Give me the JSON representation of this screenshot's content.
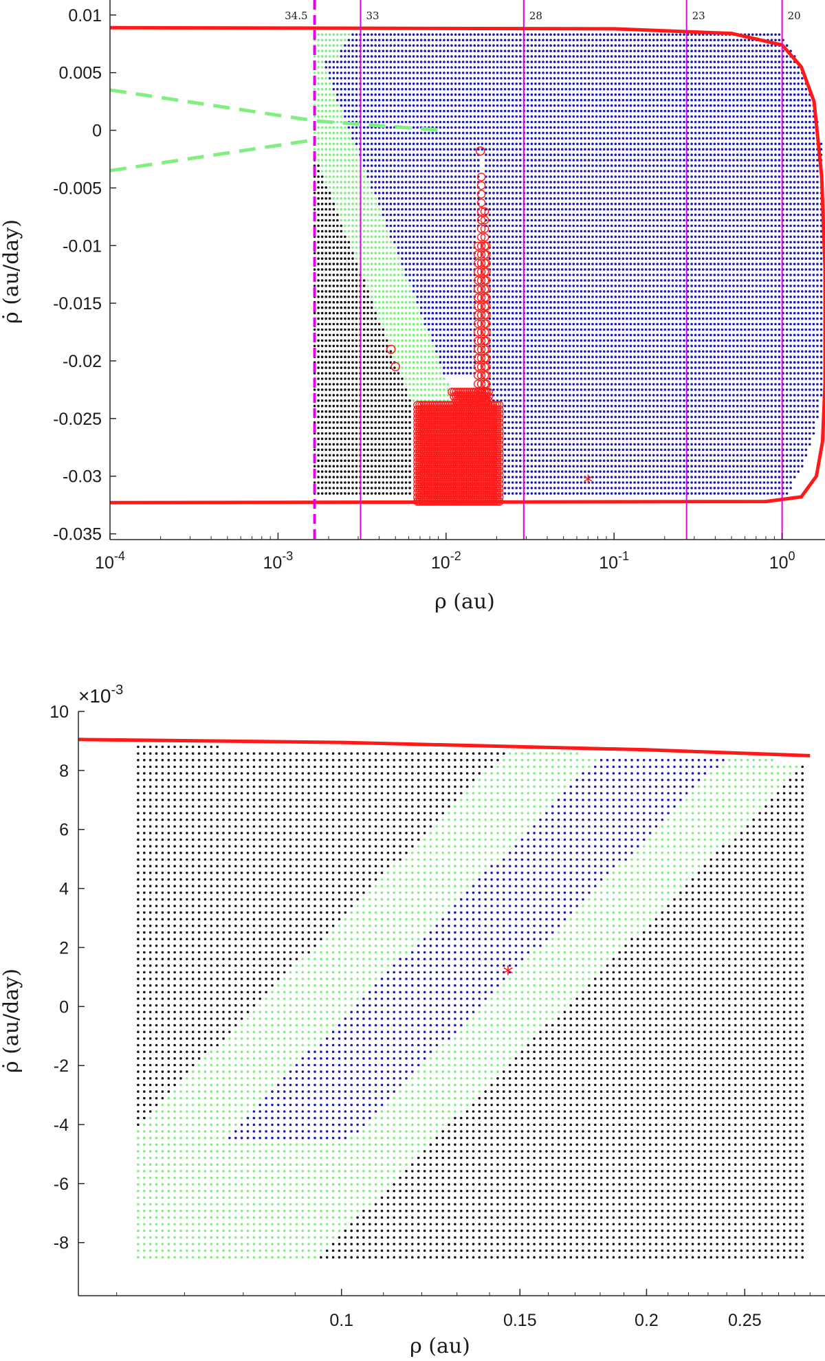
{
  "chart_data": [
    {
      "type": "scatter",
      "xscale": "log",
      "xlim": [
        0.0001,
        1.8
      ],
      "ylim": [
        -0.0355,
        0.0113
      ],
      "xticks": [
        0.0001,
        0.001,
        0.01,
        0.1,
        1
      ],
      "xtick_labels": [
        {
          "base": "10",
          "exp": "-4"
        },
        {
          "base": "10",
          "exp": "-3"
        },
        {
          "base": "10",
          "exp": "-2"
        },
        {
          "base": "10",
          "exp": "-1"
        },
        {
          "base": "10",
          "exp": "0"
        }
      ],
      "yticks": [
        0.01,
        0.005,
        0,
        -0.005,
        -0.01,
        -0.015,
        -0.02,
        -0.025,
        -0.03,
        -0.035
      ],
      "ytick_labels": [
        "0.01",
        "0.005",
        "0",
        "-0.005",
        "-0.01",
        "-0.015",
        "-0.02",
        "-0.025",
        "-0.03",
        "-0.035"
      ],
      "xlabel": "ρ (au)",
      "ylabel": "ρ̇ (au/day)",
      "dashed_vertical": {
        "x": 0.00165,
        "label": "34.5",
        "color": "#e400e4"
      },
      "vertical_lines": [
        {
          "x": 0.0031,
          "label": "33"
        },
        {
          "x": 0.029,
          "label": "28"
        },
        {
          "x": 0.27,
          "label": "23"
        },
        {
          "x": 1.0,
          "label": "20"
        }
      ],
      "boundary": {
        "color": "#ff1a1a",
        "upper": [
          [
            0.0001,
            0.0089
          ],
          [
            0.1,
            0.0088
          ],
          [
            0.5,
            0.0084
          ],
          [
            1.0,
            0.0074
          ],
          [
            1.3,
            0.0055
          ],
          [
            1.55,
            0.0025
          ],
          [
            1.72,
            -0.004
          ],
          [
            1.8,
            -0.012
          ],
          [
            1.8,
            -0.022
          ],
          [
            1.74,
            -0.027
          ],
          [
            1.6,
            -0.03
          ],
          [
            1.3,
            -0.0318
          ],
          [
            0.8,
            -0.0322
          ],
          [
            0.0001,
            -0.0323
          ]
        ]
      },
      "series": [
        {
          "name": "",
          "color": "#1a1ab3",
          "region": "outer grid region"
        },
        {
          "name": "",
          "color": "#7ff07f",
          "region": "inner band"
        },
        {
          "name": "",
          "color": "#111111",
          "region": "lower-left region"
        },
        {
          "name": "",
          "color": "#ff1a1a",
          "marker": "circle",
          "region": "impact spike",
          "points": [
            [
              0.0047,
              -0.019
            ],
            [
              0.005,
              -0.0205
            ],
            [
              0.016,
              -0.0018
            ]
          ]
        }
      ],
      "green_dashed_lines": [
        {
          "from": [
            0.0001,
            0.0035
          ],
          "to": [
            0.0017,
            0.0008
          ]
        },
        {
          "from": [
            0.0001,
            -0.0035
          ],
          "to": [
            0.0017,
            -0.0008
          ]
        },
        {
          "from": [
            0.0017,
            0.0008
          ],
          "to": [
            0.0095,
            0.0
          ]
        }
      ],
      "star": {
        "x": 0.07,
        "y": -0.0305
      }
    },
    {
      "type": "scatter",
      "xscale": "log",
      "xlim": [
        0.055,
        0.3
      ],
      "ylim": [
        -0.0098,
        0.01
      ],
      "xticks": [
        0.1,
        0.15,
        0.2,
        0.25
      ],
      "xtick_labels": [
        "0.1",
        "0.15",
        "0.2",
        "0.25"
      ],
      "yticks": [
        10,
        8,
        6,
        4,
        2,
        0,
        -2,
        -4,
        -6,
        -8
      ],
      "ytick_labels": [
        "10",
        "8",
        "6",
        "4",
        "2",
        "0",
        "-2",
        "-4",
        "-6",
        "-8"
      ],
      "multiplier": {
        "base": "×10",
        "exp": "-3"
      },
      "xlabel": "ρ (au)",
      "ylabel": "ρ̇ (au/day)",
      "boundary": {
        "color": "#ff1a1a",
        "line": [
          [
            0.055,
            0.00905
          ],
          [
            0.1,
            0.00895
          ],
          [
            0.2,
            0.0087
          ],
          [
            0.29,
            0.0085
          ]
        ]
      },
      "series": [
        {
          "name": "",
          "color": "#111111",
          "region": "background grid"
        },
        {
          "name": "",
          "color": "#7ff07f",
          "region": "diagonal band"
        },
        {
          "name": "",
          "color": "#1a1ab3",
          "region": "diagonal core"
        }
      ],
      "star": {
        "x": 0.146,
        "y": 0.0011
      }
    }
  ]
}
